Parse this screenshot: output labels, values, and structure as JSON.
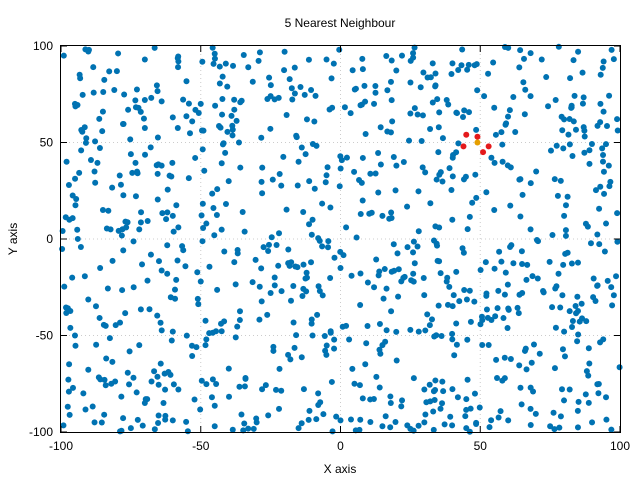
{
  "chart_data": {
    "type": "scatter",
    "title": "5 Nearest Neighbour",
    "xlabel": "X axis",
    "ylabel": "Y axis",
    "xlim": [
      -100,
      100
    ],
    "ylim": [
      -100,
      100
    ],
    "xticks": [
      -100,
      -50,
      0,
      50,
      100
    ],
    "yticks": [
      -100,
      -50,
      0,
      50,
      100
    ],
    "x_tick_labels": [
      "-100",
      "-50",
      "0",
      "50",
      "100"
    ],
    "y_tick_labels": [
      "-100",
      "-50",
      "0",
      "50",
      "100"
    ],
    "grid": true,
    "point_count_approx": 1000,
    "series": [
      {
        "role": "all points",
        "color": "#0072b2",
        "sample_points": [
          [
            -99,
            95
          ],
          [
            -90,
            98
          ],
          [
            -80,
            87
          ],
          [
            -70,
            93
          ],
          [
            -58,
            92
          ],
          [
            -45,
            96
          ],
          [
            -33,
            89
          ],
          [
            -20,
            97
          ],
          [
            -5,
            93
          ],
          [
            8,
            88
          ],
          [
            22,
            95
          ],
          [
            33,
            91
          ],
          [
            48,
            90
          ],
          [
            60,
            99
          ],
          [
            72,
            93
          ],
          [
            85,
            97
          ],
          [
            97,
            98
          ],
          [
            -95,
            70
          ],
          [
            -85,
            66
          ],
          [
            -70,
            72
          ],
          [
            -60,
            63
          ],
          [
            -50,
            70
          ],
          [
            -38,
            67
          ],
          [
            -25,
            74
          ],
          [
            -12,
            62
          ],
          [
            -3,
            68
          ],
          [
            12,
            70
          ],
          [
            25,
            65
          ],
          [
            38,
            72
          ],
          [
            55,
            68
          ],
          [
            68,
            74
          ],
          [
            80,
            62
          ],
          [
            93,
            70
          ],
          [
            -98,
            40
          ],
          [
            -88,
            35
          ],
          [
            -75,
            44
          ],
          [
            -64,
            38
          ],
          [
            -52,
            42
          ],
          [
            -40,
            30
          ],
          [
            -28,
            37
          ],
          [
            -15,
            40
          ],
          [
            -5,
            33
          ],
          [
            8,
            42
          ],
          [
            20,
            38
          ],
          [
            35,
            45
          ],
          [
            58,
            40
          ],
          [
            70,
            35
          ],
          [
            83,
            43
          ],
          [
            96,
            38
          ],
          [
            -97,
            10
          ],
          [
            -85,
            15
          ],
          [
            -72,
            5
          ],
          [
            -60,
            12
          ],
          [
            -48,
            8
          ],
          [
            -35,
            14
          ],
          [
            -22,
            3
          ],
          [
            -10,
            10
          ],
          [
            2,
            6
          ],
          [
            15,
            12
          ],
          [
            28,
            4
          ],
          [
            40,
            10
          ],
          [
            55,
            15
          ],
          [
            68,
            5
          ],
          [
            80,
            12
          ],
          [
            95,
            8
          ],
          [
            -96,
            -20
          ],
          [
            -86,
            -15
          ],
          [
            -74,
            -25
          ],
          [
            -62,
            -18
          ],
          [
            -50,
            -22
          ],
          [
            -38,
            -12
          ],
          [
            -25,
            -28
          ],
          [
            -12,
            -20
          ],
          [
            0,
            -15
          ],
          [
            12,
            -25
          ],
          [
            26,
            -18
          ],
          [
            38,
            -22
          ],
          [
            52,
            -12
          ],
          [
            65,
            -28
          ],
          [
            78,
            -18
          ],
          [
            92,
            -24
          ],
          [
            -95,
            -50
          ],
          [
            -84,
            -45
          ],
          [
            -72,
            -55
          ],
          [
            -60,
            -48
          ],
          [
            -48,
            -52
          ],
          [
            -36,
            -42
          ],
          [
            -24,
            -58
          ],
          [
            -10,
            -50
          ],
          [
            2,
            -45
          ],
          [
            15,
            -55
          ],
          [
            28,
            -48
          ],
          [
            40,
            -52
          ],
          [
            54,
            -42
          ],
          [
            66,
            -58
          ],
          [
            80,
            -48
          ],
          [
            94,
            -52
          ],
          [
            -92,
            -80
          ],
          [
            -82,
            -75
          ],
          [
            -70,
            -85
          ],
          [
            -58,
            -78
          ],
          [
            -46,
            -82
          ],
          [
            -34,
            -72
          ],
          [
            -22,
            -88
          ],
          [
            -8,
            -80
          ],
          [
            5,
            -75
          ],
          [
            18,
            -85
          ],
          [
            30,
            -78
          ],
          [
            42,
            -82
          ],
          [
            56,
            -72
          ],
          [
            68,
            -88
          ],
          [
            82,
            -78
          ],
          [
            95,
            -82
          ],
          [
            -88,
            -95
          ],
          [
            -75,
            -98
          ],
          [
            -60,
            -94
          ],
          [
            -45,
            -97
          ],
          [
            -30,
            -95
          ],
          [
            -15,
            -98
          ],
          [
            0,
            -94
          ],
          [
            15,
            -97
          ],
          [
            30,
            -95
          ],
          [
            45,
            -98
          ],
          [
            60,
            -94
          ],
          [
            75,
            -97
          ],
          [
            90,
            -95
          ]
        ]
      },
      {
        "role": "nearest neighbours",
        "color": "#e41a1c",
        "points": [
          [
            45,
            54
          ],
          [
            49,
            53
          ],
          [
            44,
            48
          ],
          [
            51,
            45
          ],
          [
            53,
            48
          ]
        ]
      },
      {
        "role": "query point",
        "color": "#e69f00",
        "points": [
          [
            49,
            50
          ]
        ]
      }
    ]
  }
}
